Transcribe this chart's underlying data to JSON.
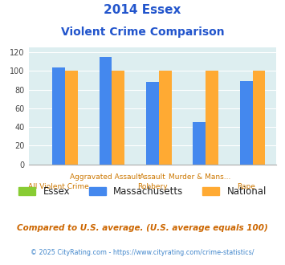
{
  "title_line1": "2014 Essex",
  "title_line2": "Violent Crime Comparison",
  "essex": [
    0,
    0,
    0,
    0,
    0
  ],
  "massachusetts": [
    104,
    115,
    88,
    45,
    89
  ],
  "national": [
    100,
    100,
    100,
    100,
    100
  ],
  "essex_color": "#88cc33",
  "massachusetts_color": "#4488ee",
  "national_color": "#ffaa33",
  "bg_color": "#ddeef0",
  "title_color": "#2255cc",
  "xlabel_top": [
    "",
    "Aggravated Assault",
    "Assault",
    "Murder & Mans...",
    ""
  ],
  "xlabel_bot": [
    "All Violent Crime",
    "",
    "Robbery",
    "",
    "Rape"
  ],
  "xlabel_color": "#cc7700",
  "ylim": [
    0,
    125
  ],
  "yticks": [
    0,
    20,
    40,
    60,
    80,
    100,
    120
  ],
  "legend_labels": [
    "Essex",
    "Massachusetts",
    "National"
  ],
  "footnote1": "Compared to U.S. average. (U.S. average equals 100)",
  "footnote2": "© 2025 CityRating.com - https://www.cityrating.com/crime-statistics/",
  "footnote1_color": "#cc6600",
  "footnote2_color": "#4488cc",
  "footnote2_prefix_color": "#888888"
}
